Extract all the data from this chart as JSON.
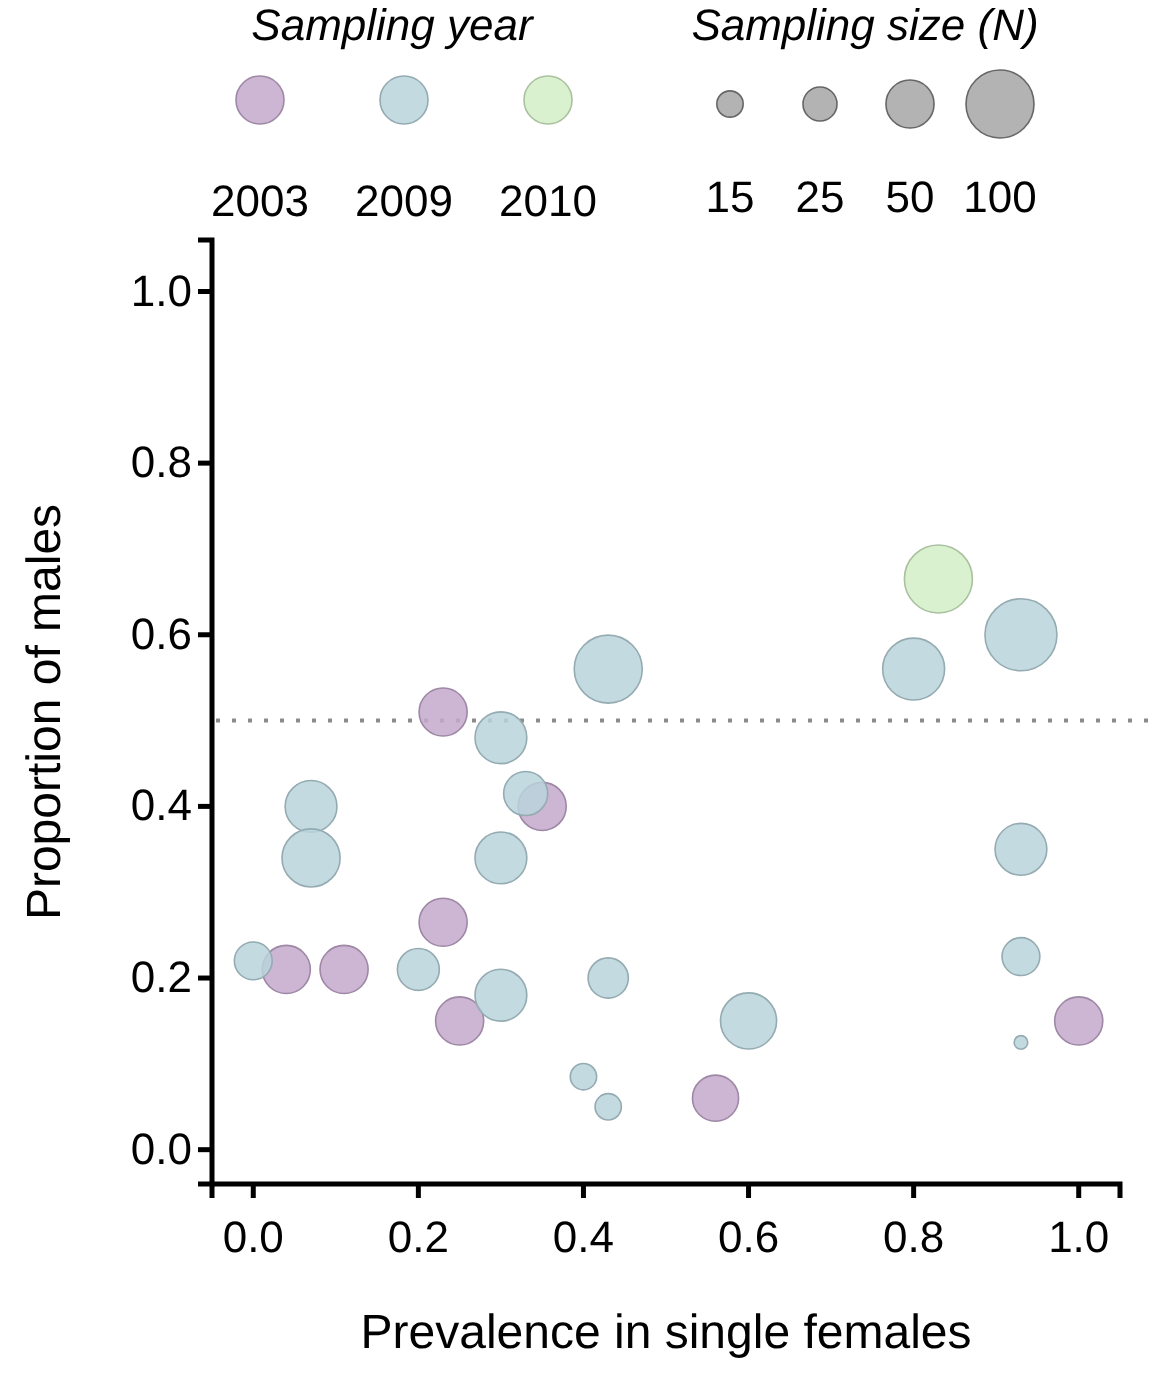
{
  "chart_data": {
    "type": "bubble",
    "xlabel": "Prevalence in single females",
    "ylabel": "Proportion of males",
    "legend": "top",
    "legend_title": "Sampling year",
    "annotations": [
      "Sampling size (N)"
    ],
    "size_legend": [
      15,
      25,
      50,
      100
    ],
    "xlim": [
      -0.05,
      1.05
    ],
    "xticks": [
      {
        "value": 0,
        "label": "0.0"
      },
      {
        "value": 0.2,
        "label": "0.2"
      },
      {
        "value": 0.4,
        "label": "0.4"
      },
      {
        "value": 0.6,
        "label": "0.6"
      },
      {
        "value": 0.8,
        "label": "0.8"
      },
      {
        "value": 1,
        "label": "1.0"
      }
    ],
    "ylim": [
      -0.04,
      1.06
    ],
    "yticks": [
      {
        "value": 0,
        "label": "0.0"
      },
      {
        "value": 0.2,
        "label": "0.2"
      },
      {
        "value": 0.4,
        "label": "0.4"
      },
      {
        "value": 0.6,
        "label": "0.6"
      },
      {
        "value": 0.8,
        "label": "0.8"
      },
      {
        "value": 1,
        "label": "1.0"
      }
    ],
    "grid": false,
    "ref_lines": [
      {
        "axis": "y",
        "value": 0.5,
        "color": "#8c8c8c",
        "line_style": "dotted"
      }
    ],
    "series": [
      {
        "name": "2003",
        "color": "#c4a8cc",
        "x": [
          0.23,
          0.35,
          0.04,
          0.11,
          0.23,
          0.25,
          1.0,
          0.56
        ],
        "values": [
          0.51,
          0.4,
          0.21,
          0.21,
          0.265,
          0.15,
          0.15,
          0.06
        ],
        "sizes": [
          50,
          50,
          50,
          50,
          50,
          50,
          50,
          46
        ]
      },
      {
        "name": "2009",
        "color": "#b8d4dc",
        "x": [
          0.0,
          0.07,
          0.07,
          0.2,
          0.3,
          0.33,
          0.3,
          0.3,
          0.43,
          0.43,
          0.4,
          0.43,
          0.8,
          0.93,
          0.93,
          0.93,
          0.93,
          0.6
        ],
        "values": [
          0.22,
          0.4,
          0.34,
          0.21,
          0.48,
          0.415,
          0.34,
          0.18,
          0.56,
          0.2,
          0.085,
          0.05,
          0.56,
          0.6,
          0.35,
          0.225,
          0.125,
          0.15
        ],
        "sizes": [
          31,
          58,
          73,
          38,
          58,
          42,
          58,
          58,
          100,
          35,
          15,
          15,
          83,
          112,
          58,
          31,
          4,
          68
        ]
      },
      {
        "name": "2010",
        "color": "#d2efc6",
        "x": [
          0.83
        ],
        "values": [
          0.665
        ],
        "sizes": [
          100
        ]
      }
    ]
  }
}
